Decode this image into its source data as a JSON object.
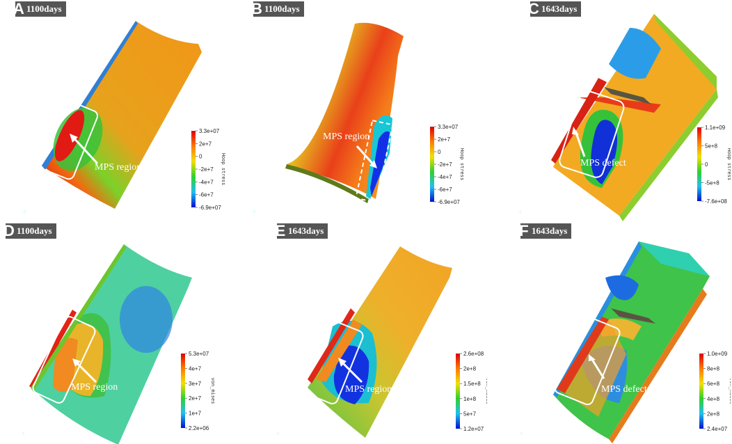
{
  "panels": [
    {
      "letter": "A",
      "days": "1100days",
      "label": "MPS region",
      "colorbar_title": "Hoop stress",
      "ticks": [
        "3.3e+07",
        "2e+7",
        "0",
        "-2e+7",
        "-4e+7",
        "-6e+7",
        "-6.9e+07"
      ],
      "colormap": "rainbow"
    },
    {
      "letter": "B",
      "days": "1100days",
      "label": "MPS region",
      "colorbar_title": "Hoop stress",
      "ticks": [
        "3.3e+07",
        "2e+7",
        "0",
        "-2e+7",
        "-4e+7",
        "-6e+7",
        "-6.9e+07"
      ],
      "colormap": "rainbow"
    },
    {
      "letter": "C",
      "days": "1643days",
      "label": "MPS defect",
      "colorbar_title": "Hoop stress",
      "ticks": [
        "1.1e+09",
        "5e+8",
        "0",
        "-5e+8",
        "-7.6e+08"
      ],
      "colormap": "rainbow"
    },
    {
      "letter": "D",
      "days": "1100days",
      "label": "MPS region",
      "colorbar_title": "von_mises",
      "ticks": [
        "5.3e+07",
        "4e+7",
        "3e+7",
        "2e+7",
        "1e+7",
        "2.2e+06"
      ],
      "colormap": "rainbow"
    },
    {
      "letter": "E",
      "days": "1643days",
      "label": "MPS region",
      "colorbar_title": "von_mises",
      "ticks": [
        "2.6e+08",
        "2e+8",
        "1.5e+8",
        "1e+8",
        "5e+7",
        "1.2e+07"
      ],
      "colormap": "rainbow"
    },
    {
      "letter": "F",
      "days": "1643days",
      "label": "MPS defect",
      "colorbar_title": "von_mises",
      "ticks": [
        "1.0e+09",
        "8e+8",
        "6e+8",
        "4e+8",
        "2e+8",
        "2.4e+07"
      ],
      "colormap": "rainbow"
    }
  ]
}
